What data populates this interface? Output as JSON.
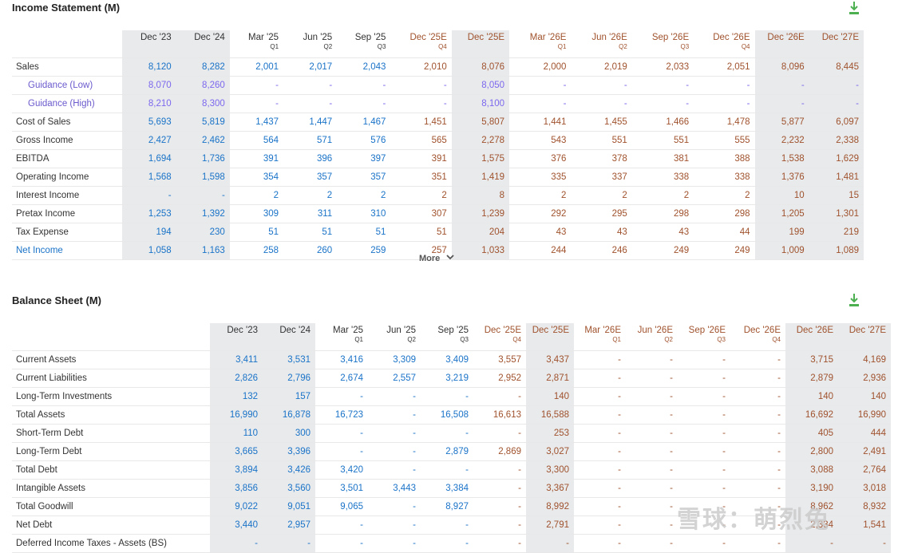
{
  "income": {
    "title": "Income Statement (M)",
    "headers": [
      {
        "label": "Dec '23",
        "q": "",
        "kind": "act",
        "hl": true
      },
      {
        "label": "Dec '24",
        "q": "",
        "kind": "act",
        "hl": true
      },
      {
        "label": "Mar '25",
        "q": "Q1",
        "kind": "act",
        "hl": false
      },
      {
        "label": "Jun '25",
        "q": "Q2",
        "kind": "act",
        "hl": false
      },
      {
        "label": "Sep '25",
        "q": "Q3",
        "kind": "act",
        "hl": false
      },
      {
        "label": "Dec '25E",
        "q": "Q4",
        "kind": "est",
        "hl": false
      },
      {
        "label": "Dec '25E",
        "q": "",
        "kind": "est",
        "hl": true
      },
      {
        "label": "Mar '26E",
        "q": "Q1",
        "kind": "est",
        "hl": false
      },
      {
        "label": "Jun '26E",
        "q": "Q2",
        "kind": "est",
        "hl": false
      },
      {
        "label": "Sep '26E",
        "q": "Q3",
        "kind": "est",
        "hl": false
      },
      {
        "label": "Dec '26E",
        "q": "Q4",
        "kind": "est",
        "hl": false
      },
      {
        "label": "Dec '26E",
        "q": "",
        "kind": "est",
        "hl": true
      },
      {
        "label": "Dec '27E",
        "q": "",
        "kind": "est",
        "hl": true
      }
    ],
    "rows": [
      {
        "label": "Sales",
        "style": "",
        "values": [
          "8,120",
          "8,282",
          "2,001",
          "2,017",
          "2,043",
          "2,010",
          "8,076",
          "2,000",
          "2,019",
          "2,033",
          "2,051",
          "8,096",
          "8,445"
        ]
      },
      {
        "label": "Guidance (Low)",
        "style": "sub",
        "values": [
          "8,070",
          "8,260",
          "-",
          "-",
          "-",
          "-",
          "8,050",
          "-",
          "-",
          "-",
          "-",
          "-",
          "-"
        ]
      },
      {
        "label": "Guidance (High)",
        "style": "sub",
        "values": [
          "8,210",
          "8,300",
          "-",
          "-",
          "-",
          "-",
          "8,100",
          "-",
          "-",
          "-",
          "-",
          "-",
          "-"
        ]
      },
      {
        "label": "Cost of Sales",
        "style": "",
        "values": [
          "5,693",
          "5,819",
          "1,437",
          "1,447",
          "1,467",
          "1,451",
          "5,807",
          "1,441",
          "1,455",
          "1,466",
          "1,478",
          "5,877",
          "6,097"
        ]
      },
      {
        "label": "Gross Income",
        "style": "",
        "values": [
          "2,427",
          "2,462",
          "564",
          "571",
          "576",
          "565",
          "2,278",
          "543",
          "551",
          "551",
          "555",
          "2,232",
          "2,338"
        ]
      },
      {
        "label": "EBITDA",
        "style": "",
        "values": [
          "1,694",
          "1,736",
          "391",
          "396",
          "397",
          "391",
          "1,575",
          "376",
          "378",
          "381",
          "388",
          "1,538",
          "1,629"
        ]
      },
      {
        "label": "Operating Income",
        "style": "",
        "values": [
          "1,568",
          "1,598",
          "354",
          "357",
          "357",
          "351",
          "1,419",
          "335",
          "337",
          "338",
          "338",
          "1,376",
          "1,481"
        ]
      },
      {
        "label": "Interest Income",
        "style": "",
        "values": [
          "-",
          "-",
          "2",
          "2",
          "2",
          "2",
          "8",
          "2",
          "2",
          "2",
          "2",
          "10",
          "15"
        ]
      },
      {
        "label": "Pretax Income",
        "style": "",
        "values": [
          "1,253",
          "1,392",
          "309",
          "311",
          "310",
          "307",
          "1,239",
          "292",
          "295",
          "298",
          "298",
          "1,205",
          "1,301"
        ]
      },
      {
        "label": "Tax Expense",
        "style": "",
        "values": [
          "194",
          "230",
          "51",
          "51",
          "51",
          "51",
          "204",
          "43",
          "43",
          "43",
          "44",
          "199",
          "219"
        ]
      },
      {
        "label": "Net Income",
        "style": "link",
        "values": [
          "1,058",
          "1,163",
          "258",
          "260",
          "259",
          "257",
          "1,033",
          "244",
          "246",
          "249",
          "249",
          "1,009",
          "1,089"
        ]
      }
    ],
    "more_label": "More"
  },
  "balance": {
    "title": "Balance Sheet (M)",
    "headers": [
      {
        "label": "Dec '23",
        "q": "",
        "kind": "act",
        "hl": true
      },
      {
        "label": "Dec '24",
        "q": "",
        "kind": "act",
        "hl": true
      },
      {
        "label": "Mar '25",
        "q": "Q1",
        "kind": "act",
        "hl": false
      },
      {
        "label": "Jun '25",
        "q": "Q2",
        "kind": "act",
        "hl": false
      },
      {
        "label": "Sep '25",
        "q": "Q3",
        "kind": "act",
        "hl": false
      },
      {
        "label": "Dec '25E",
        "q": "Q4",
        "kind": "est",
        "hl": false
      },
      {
        "label": "Dec '25E",
        "q": "",
        "kind": "est",
        "hl": true
      },
      {
        "label": "Mar '26E",
        "q": "Q1",
        "kind": "est",
        "hl": false
      },
      {
        "label": "Jun '26E",
        "q": "Q2",
        "kind": "est",
        "hl": false
      },
      {
        "label": "Sep '26E",
        "q": "Q3",
        "kind": "est",
        "hl": false
      },
      {
        "label": "Dec '26E",
        "q": "Q4",
        "kind": "est",
        "hl": false
      },
      {
        "label": "Dec '26E",
        "q": "",
        "kind": "est",
        "hl": true
      },
      {
        "label": "Dec '27E",
        "q": "",
        "kind": "est",
        "hl": true
      }
    ],
    "rows": [
      {
        "label": "Current Assets",
        "style": "",
        "values": [
          "3,411",
          "3,531",
          "3,416",
          "3,309",
          "3,409",
          "3,557",
          "3,437",
          "-",
          "-",
          "-",
          "-",
          "3,715",
          "4,169"
        ]
      },
      {
        "label": "Current Liabilities",
        "style": "",
        "values": [
          "2,826",
          "2,796",
          "2,674",
          "2,557",
          "3,219",
          "2,952",
          "2,871",
          "-",
          "-",
          "-",
          "-",
          "2,879",
          "2,936"
        ]
      },
      {
        "label": "Long-Term Investments",
        "style": "",
        "values": [
          "132",
          "157",
          "-",
          "-",
          "-",
          "-",
          "140",
          "-",
          "-",
          "-",
          "-",
          "140",
          "140"
        ]
      },
      {
        "label": "Total Assets",
        "style": "",
        "values": [
          "16,990",
          "16,878",
          "16,723",
          "-",
          "16,508",
          "16,613",
          "16,588",
          "-",
          "-",
          "-",
          "-",
          "16,692",
          "16,990"
        ]
      },
      {
        "label": "Short-Term Debt",
        "style": "",
        "values": [
          "110",
          "300",
          "-",
          "-",
          "-",
          "-",
          "253",
          "-",
          "-",
          "-",
          "-",
          "405",
          "444"
        ]
      },
      {
        "label": "Long-Term Debt",
        "style": "",
        "values": [
          "3,665",
          "3,396",
          "-",
          "-",
          "2,879",
          "2,869",
          "3,027",
          "-",
          "-",
          "-",
          "-",
          "2,800",
          "2,491"
        ]
      },
      {
        "label": "Total Debt",
        "style": "",
        "values": [
          "3,894",
          "3,426",
          "3,420",
          "-",
          "-",
          "-",
          "3,300",
          "-",
          "-",
          "-",
          "-",
          "3,088",
          "2,764"
        ]
      },
      {
        "label": "Intangible Assets",
        "style": "",
        "values": [
          "3,856",
          "3,560",
          "3,501",
          "3,443",
          "3,384",
          "-",
          "3,367",
          "-",
          "-",
          "-",
          "-",
          "3,190",
          "3,018"
        ]
      },
      {
        "label": "Total Goodwill",
        "style": "",
        "values": [
          "9,022",
          "9,051",
          "9,065",
          "-",
          "8,927",
          "-",
          "8,992",
          "-",
          "-",
          "-",
          "-",
          "8,962",
          "8,932"
        ]
      },
      {
        "label": "Net Debt",
        "style": "",
        "values": [
          "3,440",
          "2,957",
          "-",
          "-",
          "-",
          "-",
          "2,791",
          "-",
          "-",
          "-",
          "-",
          "2,334",
          "1,541"
        ]
      },
      {
        "label": "Deferred Income Taxes - Assets (BS)",
        "style": "",
        "values": [
          "-",
          "-",
          "-",
          "-",
          "-",
          "-",
          "-",
          "-",
          "-",
          "-",
          "-",
          "-",
          "-"
        ]
      }
    ]
  },
  "watermark": "雪球：萌烈兔",
  "icons": {
    "download": "download-icon",
    "chevron": "chevron-down-icon"
  },
  "colors": {
    "actual": "#1a73c8",
    "estimate": "#a0522d",
    "highlight": "#e8eaec",
    "download": "#4caf50"
  }
}
